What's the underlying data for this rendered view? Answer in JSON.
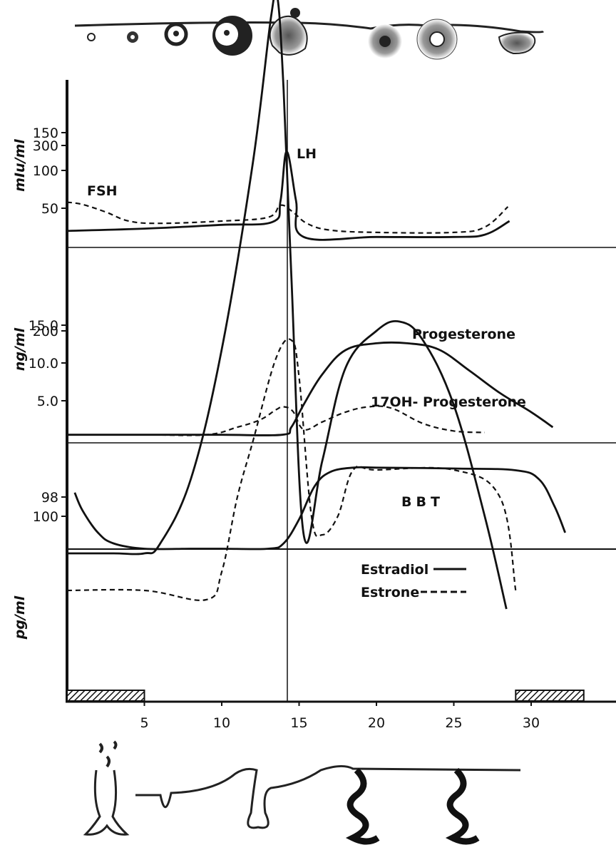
{
  "chart_data": [
    {
      "type": "line",
      "panel": "gonadotropins",
      "ylabel": "mIu/ml",
      "ylim": [
        0,
        200
      ],
      "yticks": [
        50,
        100,
        150
      ],
      "series": [
        {
          "name": "LH",
          "style": "solid",
          "x": [
            0,
            5,
            10,
            13.3,
            13.8,
            14.2,
            14.8,
            15.3,
            20,
            25,
            27,
            28.6
          ],
          "y": [
            20,
            23,
            28,
            32,
            60,
            125,
            60,
            12,
            12,
            12,
            15,
            33
          ]
        },
        {
          "name": "FSH",
          "style": "dashed",
          "x": [
            0,
            1,
            2.5,
            4,
            6,
            10,
            13,
            13.8,
            14.6,
            15.5,
            17,
            20,
            25,
            27,
            28.5
          ],
          "y": [
            58,
            55,
            45,
            33,
            30,
            33,
            38,
            54,
            45,
            30,
            21,
            18,
            18,
            25,
            52
          ]
        }
      ]
    },
    {
      "type": "line",
      "panel": "progestins",
      "ylabel": "ng/ml",
      "ylim": [
        0,
        20
      ],
      "yticks": [
        "5.0",
        "10.0",
        "15.0"
      ],
      "series": [
        {
          "name": "Progesterone",
          "style": "solid",
          "x": [
            0,
            5,
            10,
            13.9,
            14.5,
            15.3,
            16.5,
            18,
            20,
            22,
            24,
            26,
            28,
            30,
            31.4
          ],
          "y": [
            0.5,
            0.5,
            0.5,
            0.5,
            1.5,
            4.5,
            8.5,
            11.7,
            12.6,
            12.6,
            11.8,
            9,
            6,
            3.5,
            1.5
          ]
        },
        {
          "name": "17OH- Progesterone",
          "style": "dashed",
          "x": [
            0,
            5,
            9,
            11,
            12.5,
            13.5,
            14,
            14.6,
            15.3,
            16.5,
            18,
            19.5,
            21,
            23,
            25,
            27
          ],
          "y": [
            0.5,
            0.5,
            0.5,
            1.5,
            2.5,
            3.8,
            4.2,
            3.6,
            1.2,
            2.2,
            3.5,
            4.2,
            4.0,
            2.0,
            1.0,
            0.8
          ]
        }
      ]
    },
    {
      "type": "line",
      "panel": "temperature",
      "ylabel": "",
      "yticks": [
        "98"
      ],
      "series": [
        {
          "name": "BBT",
          "style": "solid",
          "x": [
            0.5,
            1,
            2,
            3,
            5,
            8,
            10,
            13,
            14,
            15,
            16,
            17,
            18.5,
            20,
            25,
            29,
            30.5,
            31.5,
            32.2
          ],
          "y": [
            98.05,
            97.85,
            97.6,
            97.48,
            97.42,
            97.42,
            97.42,
            97.42,
            97.48,
            97.75,
            98.12,
            98.28,
            98.33,
            98.33,
            98.32,
            98.3,
            98.2,
            97.9,
            97.6
          ]
        }
      ]
    },
    {
      "type": "line",
      "panel": "estrogens",
      "ylabel": "pg/ml",
      "ylim": [
        0,
        400
      ],
      "yticks": [
        100,
        200,
        300
      ],
      "xlim": [
        0,
        35
      ],
      "xticks": [
        5,
        10,
        15,
        20,
        25,
        30
      ],
      "series": [
        {
          "name": "Estradiol",
          "style": "solid",
          "x": [
            0,
            3,
            5,
            6,
            8,
            10,
            12,
            13.2,
            13.6,
            14,
            14.5,
            15.3,
            16.5,
            18,
            20,
            21.5,
            23,
            25,
            27,
            28.4
          ],
          "y": [
            80,
            80,
            80,
            85,
            120,
            190,
            290,
            370,
            380,
            330,
            230,
            90,
            130,
            180,
            200,
            205,
            195,
            160,
            100,
            50
          ]
        },
        {
          "name": "Estrone",
          "style": "dashed",
          "x": [
            0,
            5,
            9,
            10,
            11,
            12,
            13.5,
            14.5,
            15,
            15.8,
            16.5,
            17.5,
            18.5,
            20,
            25,
            28,
            29
          ],
          "y": [
            60,
            60,
            55,
            70,
            110,
            140,
            185,
            195,
            175,
            100,
            90,
            100,
            125,
            125,
            125,
            110,
            60
          ]
        }
      ]
    }
  ],
  "labels": {
    "lh": "LH",
    "fsh": "FSH",
    "progesterone": "Progesterone",
    "ohprog": "17OH- Progesterone",
    "bbt": "BBT",
    "estradiol_legend": "Estradiol",
    "estrone_legend": "Estrone"
  },
  "menses_bars": [
    [
      0,
      5
    ],
    [
      29,
      33.4
    ]
  ]
}
